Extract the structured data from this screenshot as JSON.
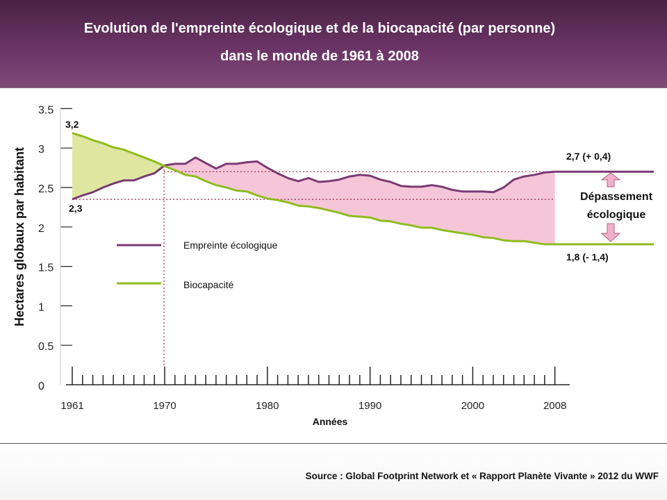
{
  "header": {
    "title_line1": "Evolution de l'empreinte écologique et de la biocapacité (par personne)",
    "title_line2": "dans le monde de 1961 à 2008"
  },
  "footer": {
    "source": "Source : Global Footprint Network et « Rapport Planète Vivante » 2012 du WWF"
  },
  "chart_data": {
    "type": "line",
    "ylabel": "Hectares globaux par habitant",
    "xlabel": "Années",
    "ylim": [
      0,
      3.5
    ],
    "yticks": [
      "0",
      "0.5",
      "1",
      "1.5",
      "2",
      "2.5",
      "3",
      "3.5"
    ],
    "xlim": [
      1961,
      2008
    ],
    "xtick_labels": [
      "1961",
      "1970",
      "1980",
      "1990",
      "2000",
      "2008"
    ],
    "grid": false,
    "legend_position": "middle-left",
    "colors": {
      "footprint": "#7a3a72",
      "biocapacity": "#8fbc1e",
      "surplus_fill": "#dfe6a0",
      "deficit_fill": "#f5c6d8",
      "reference": "#a0304a",
      "arrow_fill": "#f0b0cc"
    },
    "x": [
      1961,
      1962,
      1963,
      1964,
      1965,
      1966,
      1967,
      1968,
      1969,
      1970,
      1971,
      1972,
      1973,
      1974,
      1975,
      1976,
      1977,
      1978,
      1979,
      1980,
      1981,
      1982,
      1983,
      1984,
      1985,
      1986,
      1987,
      1988,
      1989,
      1990,
      1991,
      1992,
      1993,
      1994,
      1995,
      1996,
      1997,
      1998,
      1999,
      2000,
      2001,
      2002,
      2003,
      2004,
      2005,
      2006,
      2007,
      2008
    ],
    "series": [
      {
        "name": "Empreinte écologique",
        "key": "footprint",
        "values": [
          2.35,
          2.4,
          2.44,
          2.5,
          2.55,
          2.59,
          2.59,
          2.64,
          2.68,
          2.78,
          2.8,
          2.8,
          2.88,
          2.81,
          2.74,
          2.8,
          2.8,
          2.82,
          2.83,
          2.75,
          2.68,
          2.62,
          2.58,
          2.62,
          2.57,
          2.58,
          2.6,
          2.64,
          2.66,
          2.65,
          2.6,
          2.57,
          2.52,
          2.51,
          2.51,
          2.53,
          2.51,
          2.47,
          2.45,
          2.45,
          2.45,
          2.44,
          2.5,
          2.6,
          2.64,
          2.66,
          2.69,
          2.7
        ]
      },
      {
        "name": "Biocapacité",
        "key": "biocapacity",
        "values": [
          3.19,
          3.15,
          3.1,
          3.06,
          3.01,
          2.98,
          2.93,
          2.88,
          2.83,
          2.77,
          2.72,
          2.66,
          2.64,
          2.58,
          2.53,
          2.5,
          2.46,
          2.45,
          2.4,
          2.36,
          2.34,
          2.31,
          2.27,
          2.26,
          2.24,
          2.21,
          2.18,
          2.14,
          2.13,
          2.12,
          2.08,
          2.07,
          2.04,
          2.02,
          1.99,
          1.99,
          1.96,
          1.94,
          1.92,
          1.9,
          1.87,
          1.86,
          1.83,
          1.82,
          1.82,
          1.8,
          1.78,
          1.78
        ]
      }
    ],
    "annotations": {
      "start_bio": "3,2",
      "start_foot": "2,3",
      "end_foot": "2,7 (+ 0,4)",
      "end_bio": "1,8 (- 1,4)",
      "overshoot_line1": "Dépassement",
      "overshoot_line2": "écologique"
    }
  }
}
